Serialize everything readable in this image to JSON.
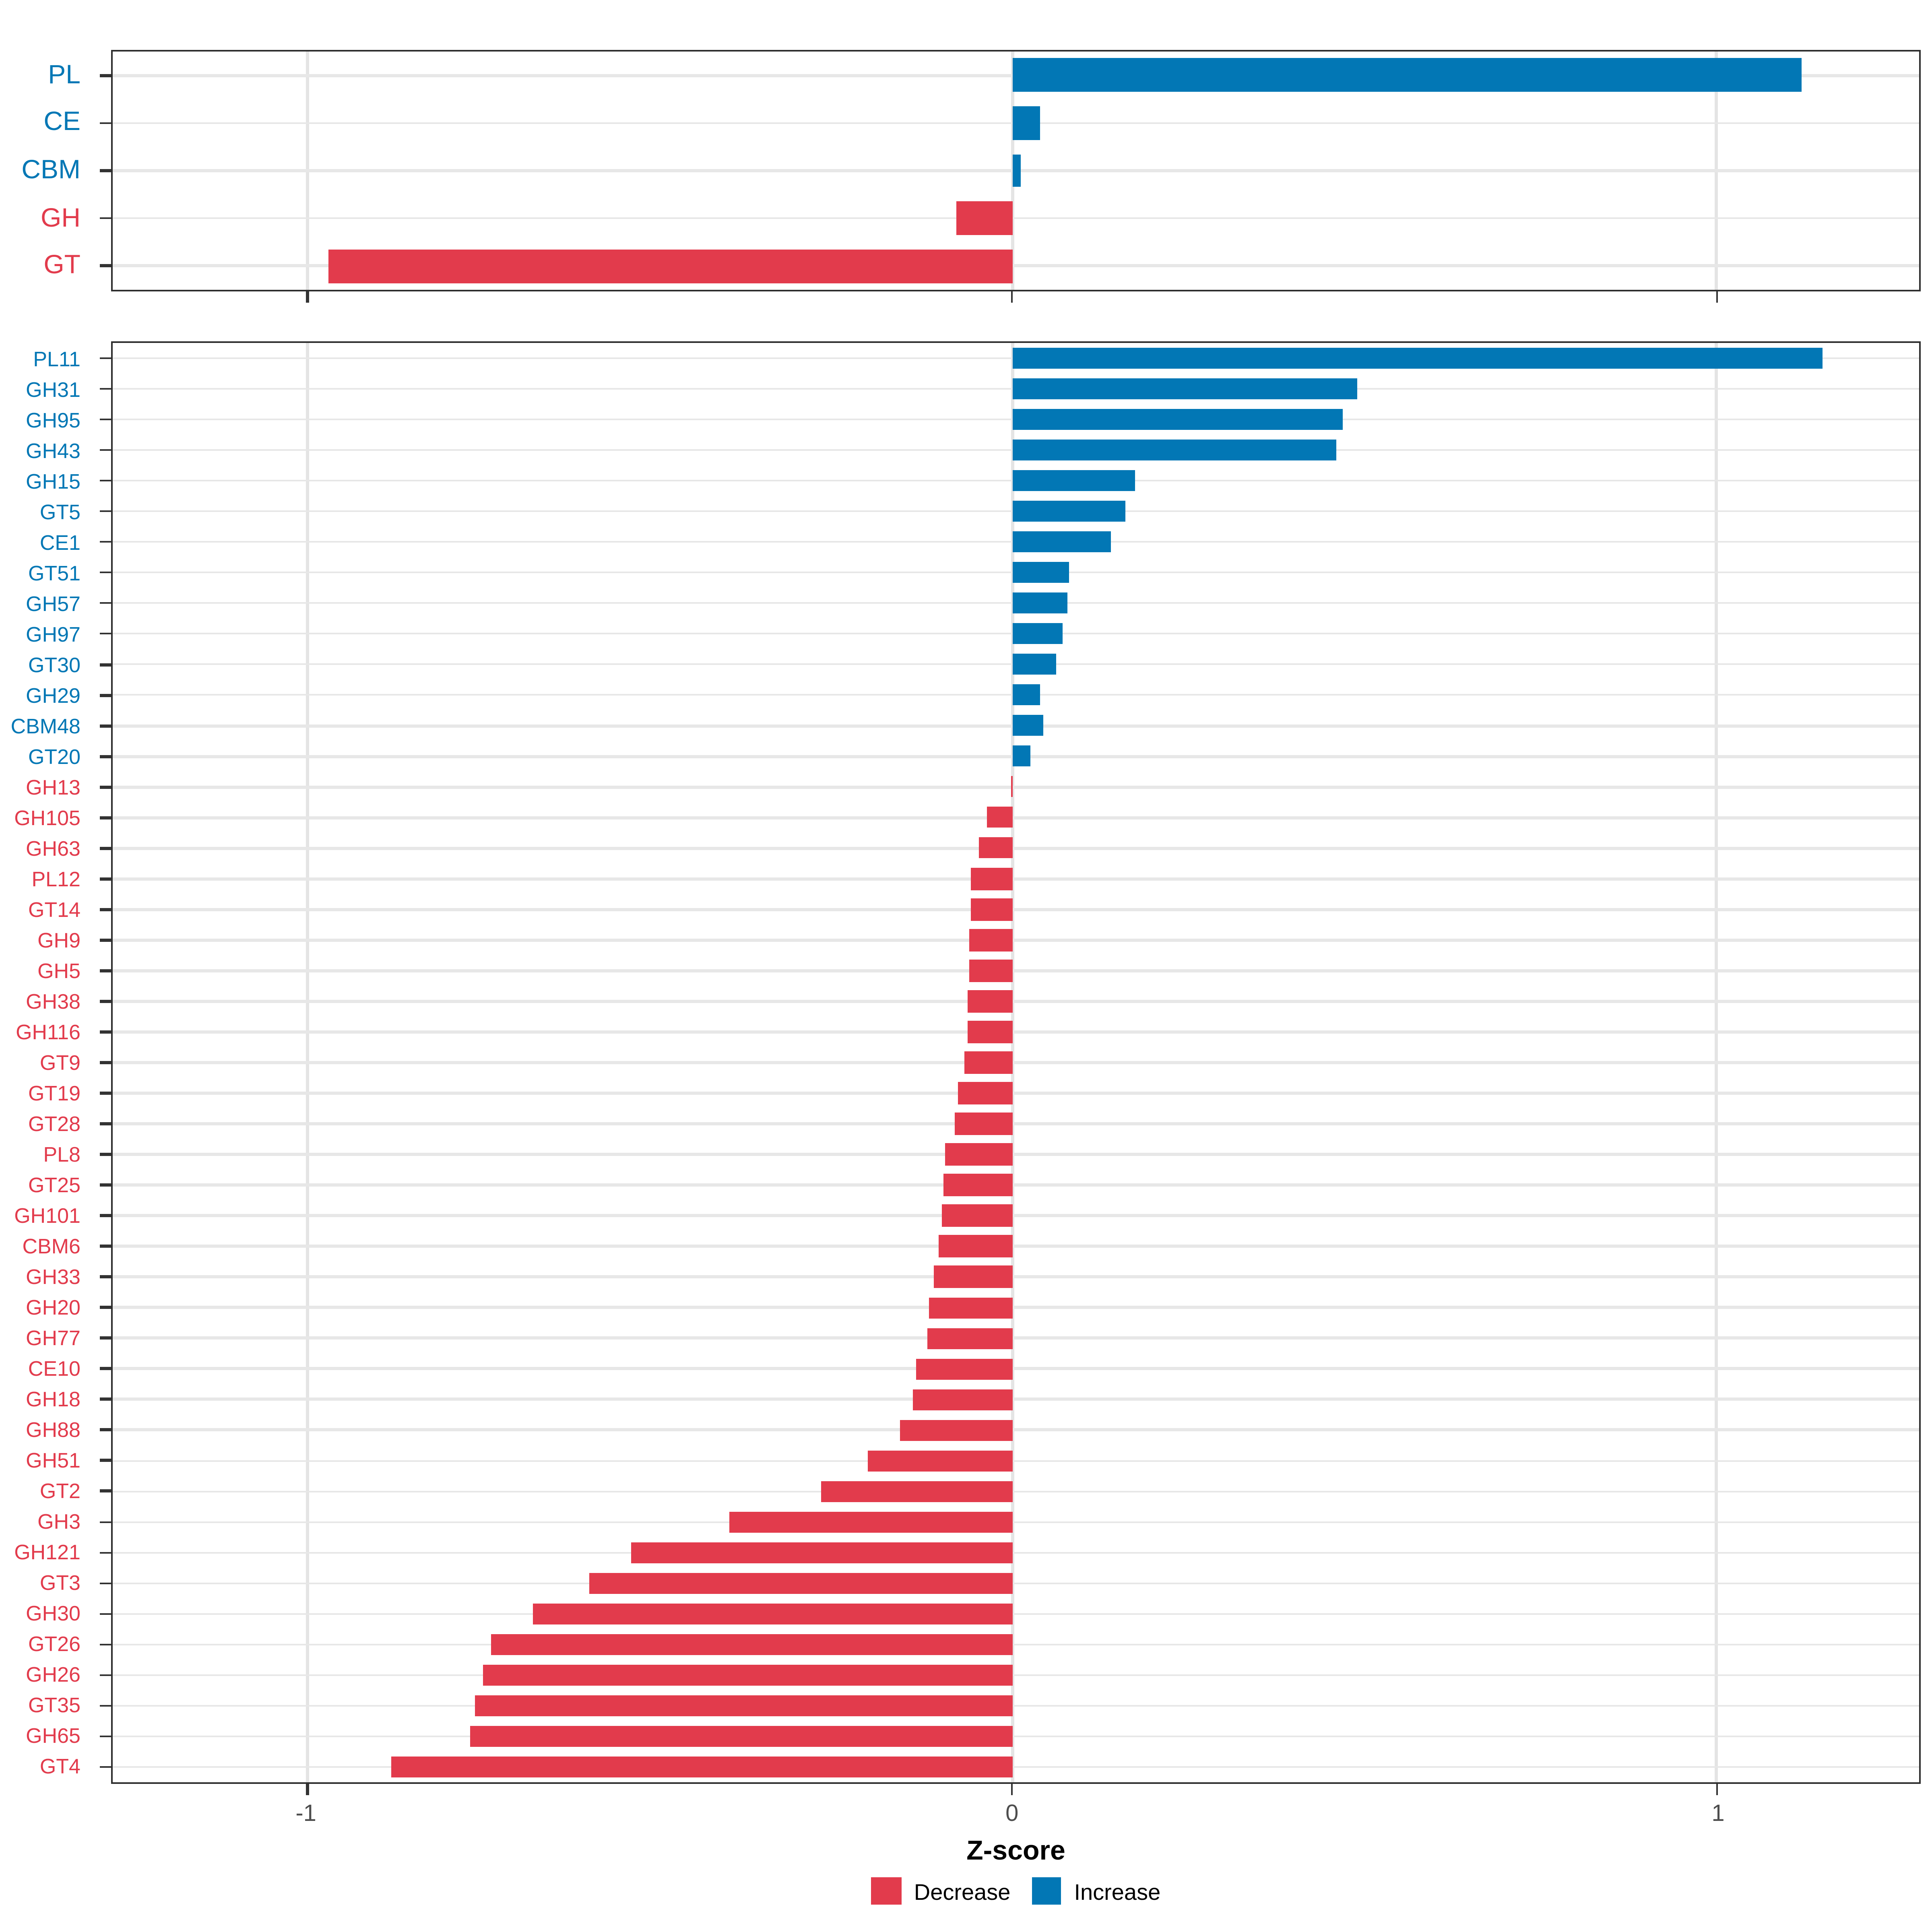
{
  "axis": {
    "label": "Z-score",
    "ticks": [
      {
        "value": -1,
        "label": "-1"
      },
      {
        "value": 0,
        "label": "0"
      },
      {
        "value": 1,
        "label": "1"
      }
    ],
    "xlim": [
      -1.276,
      1.287
    ]
  },
  "legend": {
    "items": [
      {
        "label": "Decrease",
        "color": "#e23b4c"
      },
      {
        "label": "Increase",
        "color": "#0277b5"
      }
    ]
  },
  "colors": {
    "increase": "#0277b5",
    "decrease": "#e23b4c",
    "grid": "#e7e7e7",
    "vgrid": "#e4e4e4",
    "panel_border": "#2e2e2e",
    "tick": "#333333",
    "tick_label": "#4d4d4d"
  },
  "chart_data": [
    {
      "type": "bar",
      "orientation": "horizontal",
      "panel": "enzyme-families",
      "title": "",
      "xlabel": "Z-score",
      "ylabel": "",
      "xlim": [
        -1.276,
        1.287
      ],
      "grid": true,
      "categories": [
        "PL",
        "CE",
        "CBM",
        "GH",
        "GT"
      ],
      "values": [
        1.12,
        0.04,
        0.012,
        -0.08,
        -0.97
      ]
    },
    {
      "type": "bar",
      "orientation": "horizontal",
      "panel": "enzyme-subfamilies",
      "title": "",
      "xlabel": "Z-score",
      "ylabel": "",
      "xlim": [
        -1.276,
        1.287
      ],
      "grid": true,
      "categories": [
        "PL11",
        "GH31",
        "GH95",
        "GH43",
        "GH15",
        "GT5",
        "CE1",
        "GT51",
        "GH57",
        "GH97",
        "GT30",
        "GH29",
        "CBM48",
        "GT20",
        "GH13",
        "GH105",
        "GH63",
        "PL12",
        "GT14",
        "GH9",
        "GH5",
        "GH38",
        "GH116",
        "GT9",
        "GT19",
        "GT28",
        "PL8",
        "GT25",
        "GH101",
        "CBM6",
        "GH33",
        "GH20",
        "GH77",
        "CE10",
        "GH18",
        "GH88",
        "GH51",
        "GT2",
        "GH3",
        "GH121",
        "GT3",
        "GH30",
        "GT26",
        "GH26",
        "GT35",
        "GH65",
        "GT4"
      ],
      "values": [
        1.15,
        0.49,
        0.47,
        0.46,
        0.175,
        0.16,
        0.14,
        0.082,
        0.078,
        0.072,
        0.062,
        0.04,
        0.044,
        0.025,
        -0.002,
        -0.035,
        -0.048,
        -0.058,
        -0.059,
        -0.06,
        -0.061,
        -0.062,
        -0.063,
        -0.068,
        -0.076,
        -0.081,
        -0.096,
        -0.098,
        -0.1,
        -0.104,
        -0.11,
        -0.118,
        -0.12,
        -0.135,
        -0.14,
        -0.16,
        -0.205,
        -0.27,
        -0.4,
        -0.54,
        -0.6,
        -0.68,
        -0.74,
        -0.75,
        -0.763,
        -0.768,
        -0.88
      ]
    }
  ]
}
